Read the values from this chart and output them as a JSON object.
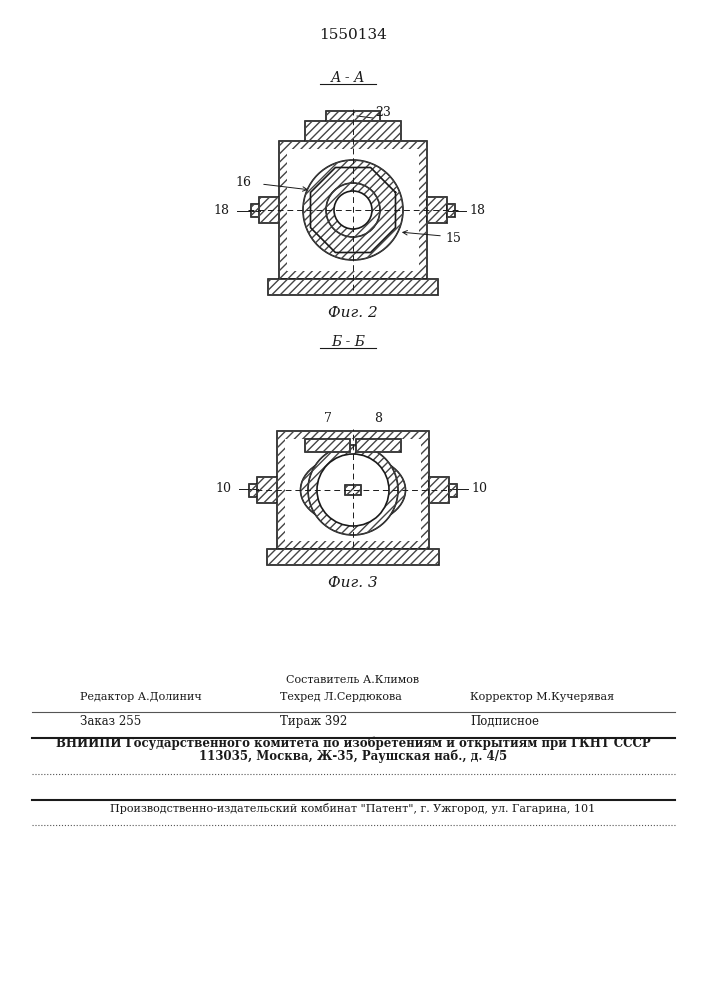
{
  "patent_number": "1550134",
  "fig2_label": "А - А",
  "fig2_caption": "Фиг. 2",
  "fig3_label": "Б - Б",
  "fig3_caption": "Фиг. 3",
  "line1": "Составитель А.Климов",
  "line2_col1": "Редактор А.Долинич",
  "line2_col2": "Техред Л.Сердюкова",
  "line2_col3": "Корректор М.Кучерявая",
  "line3_col1": "Заказ 255",
  "line3_col2": "Тираж 392",
  "line3_col3": "Подписное",
  "line4": "ВНИИПИ Государственного комитета по изобретениям и открытиям при ГКНТ СССР",
  "line5": "113035, Москва, Ж-35, Раушская наб., д. 4/5",
  "line6": "Производственно-издательский комбинат \"Патент\", г. Ужгород, ул. Гагарина, 101",
  "line_color": "#1a1a1a",
  "fig_width": 7.07,
  "fig_height": 10.0
}
